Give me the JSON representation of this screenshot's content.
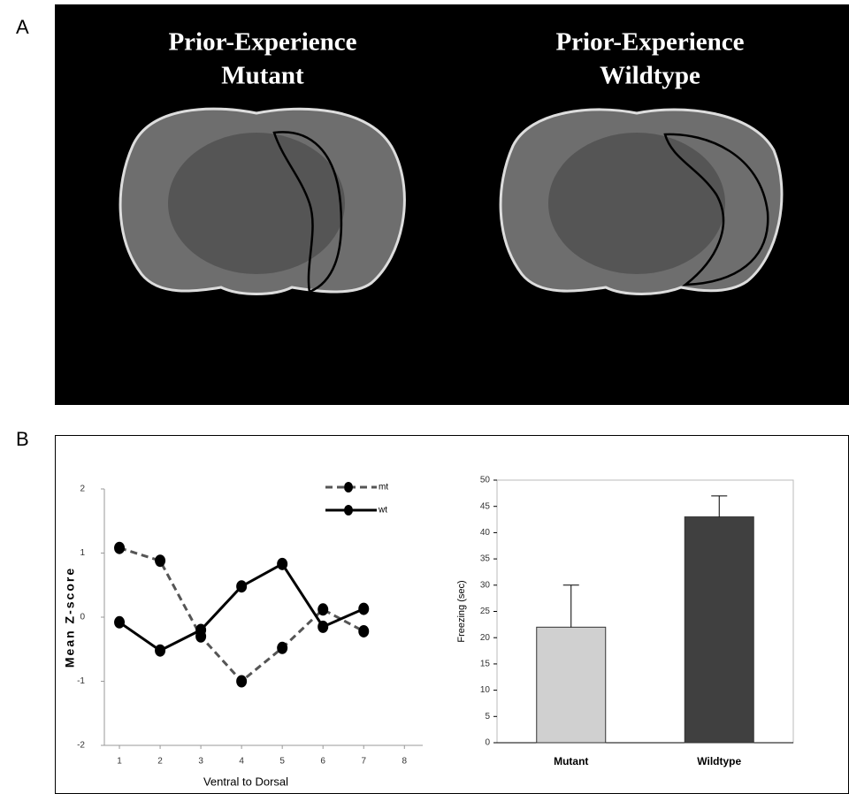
{
  "panel_labels": [
    "A",
    "B"
  ],
  "images": [
    {
      "title": [
        "Prior-Experience",
        "Mutant"
      ]
    },
    {
      "title": [
        "Prior-Experience",
        "Wildtype"
      ]
    }
  ],
  "chart_data": [
    {
      "type": "line",
      "xlabel": "Ventral to Dorsal",
      "ylabel": "Mean Z-score",
      "x": [
        1,
        2,
        3,
        4,
        5,
        6,
        7
      ],
      "series": [
        {
          "name": "mt",
          "color": "#555555",
          "dashed": true,
          "values": [
            1.08,
            0.88,
            -0.3,
            -1.0,
            -0.48,
            0.12,
            -0.22
          ]
        },
        {
          "name": "wt",
          "color": "#000000",
          "dashed": false,
          "values": [
            -0.08,
            -0.52,
            -0.2,
            0.48,
            0.83,
            -0.15,
            0.13
          ]
        }
      ],
      "xlim": [
        0.63,
        8.45
      ],
      "xticks": [
        1,
        2,
        3,
        4,
        5,
        6,
        7,
        8
      ],
      "ylim": [
        -2,
        2
      ],
      "yticks": [
        -2,
        -1,
        0,
        1,
        2
      ],
      "legend": "upper right"
    },
    {
      "type": "bar",
      "ylabel": "Freezing (sec)",
      "categories": [
        "Mutant",
        "Wildtype"
      ],
      "values": [
        22,
        43
      ],
      "errors": [
        8,
        4
      ],
      "colors": [
        "#d0d0d0",
        "#404040"
      ],
      "ylim": [
        0,
        50
      ],
      "yticks": [
        0,
        5,
        10,
        15,
        20,
        25,
        30,
        35,
        40,
        45,
        50
      ]
    }
  ]
}
